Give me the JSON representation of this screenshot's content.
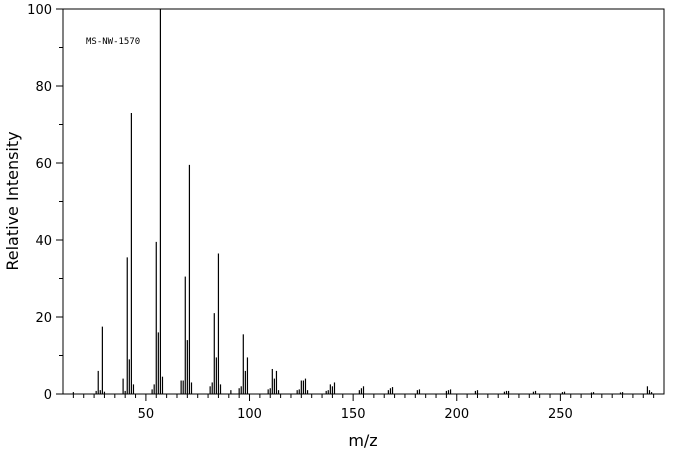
{
  "chart_data": {
    "type": "bar",
    "title": "",
    "annotation": "MS-NW-1570",
    "xlabel": "m/z",
    "ylabel": "Relative Intensity",
    "xlim": [
      10,
      300
    ],
    "ylim": [
      0,
      100
    ],
    "x_ticks": [
      "50",
      "100",
      "150",
      "200",
      "250"
    ],
    "y_ticks": [
      "0",
      "20",
      "40",
      "60",
      "80",
      "100"
    ],
    "grid": false,
    "peaks": [
      [
        15,
        0.5
      ],
      [
        26,
        0.8
      ],
      [
        27,
        6.0
      ],
      [
        28,
        1.0
      ],
      [
        29,
        17.5
      ],
      [
        30,
        0.6
      ],
      [
        39,
        4.0
      ],
      [
        40,
        0.8
      ],
      [
        41,
        35.5
      ],
      [
        42,
        9.0
      ],
      [
        43,
        73.0
      ],
      [
        44,
        2.5
      ],
      [
        53,
        1.2
      ],
      [
        54,
        2.5
      ],
      [
        55,
        39.5
      ],
      [
        56,
        16.0
      ],
      [
        57,
        100.0
      ],
      [
        58,
        4.5
      ],
      [
        67,
        3.5
      ],
      [
        68,
        3.5
      ],
      [
        69,
        30.5
      ],
      [
        70,
        14.0
      ],
      [
        71,
        59.5
      ],
      [
        72,
        3.0
      ],
      [
        81,
        2.0
      ],
      [
        82,
        3.0
      ],
      [
        83,
        21.0
      ],
      [
        84,
        9.5
      ],
      [
        85,
        36.5
      ],
      [
        86,
        2.5
      ],
      [
        91,
        1.0
      ],
      [
        95,
        1.5
      ],
      [
        96,
        2.0
      ],
      [
        97,
        15.5
      ],
      [
        98,
        6.0
      ],
      [
        99,
        9.5
      ],
      [
        109,
        1.2
      ],
      [
        110,
        1.5
      ],
      [
        111,
        6.5
      ],
      [
        112,
        4.0
      ],
      [
        113,
        6.0
      ],
      [
        114,
        1.0
      ],
      [
        123,
        1.0
      ],
      [
        124,
        1.2
      ],
      [
        125,
        3.5
      ],
      [
        126,
        3.5
      ],
      [
        127,
        4.0
      ],
      [
        128,
        1.0
      ],
      [
        137,
        0.8
      ],
      [
        138,
        1.0
      ],
      [
        139,
        2.5
      ],
      [
        140,
        2.0
      ],
      [
        141,
        3.0
      ],
      [
        153,
        1.0
      ],
      [
        154,
        1.5
      ],
      [
        155,
        2.0
      ],
      [
        167,
        1.0
      ],
      [
        168,
        1.5
      ],
      [
        169,
        1.8
      ],
      [
        181,
        1.0
      ],
      [
        182,
        1.2
      ],
      [
        195,
        0.8
      ],
      [
        196,
        1.0
      ],
      [
        197,
        1.2
      ],
      [
        209,
        0.8
      ],
      [
        210,
        1.0
      ],
      [
        223,
        0.6
      ],
      [
        224,
        0.8
      ],
      [
        225,
        0.8
      ],
      [
        237,
        0.6
      ],
      [
        238,
        0.8
      ],
      [
        251,
        0.5
      ],
      [
        252,
        0.6
      ],
      [
        265,
        0.4
      ],
      [
        266,
        0.5
      ],
      [
        279,
        0.4
      ],
      [
        280,
        0.5
      ],
      [
        292,
        2.0
      ],
      [
        293,
        1.0
      ],
      [
        294,
        0.5
      ]
    ]
  }
}
